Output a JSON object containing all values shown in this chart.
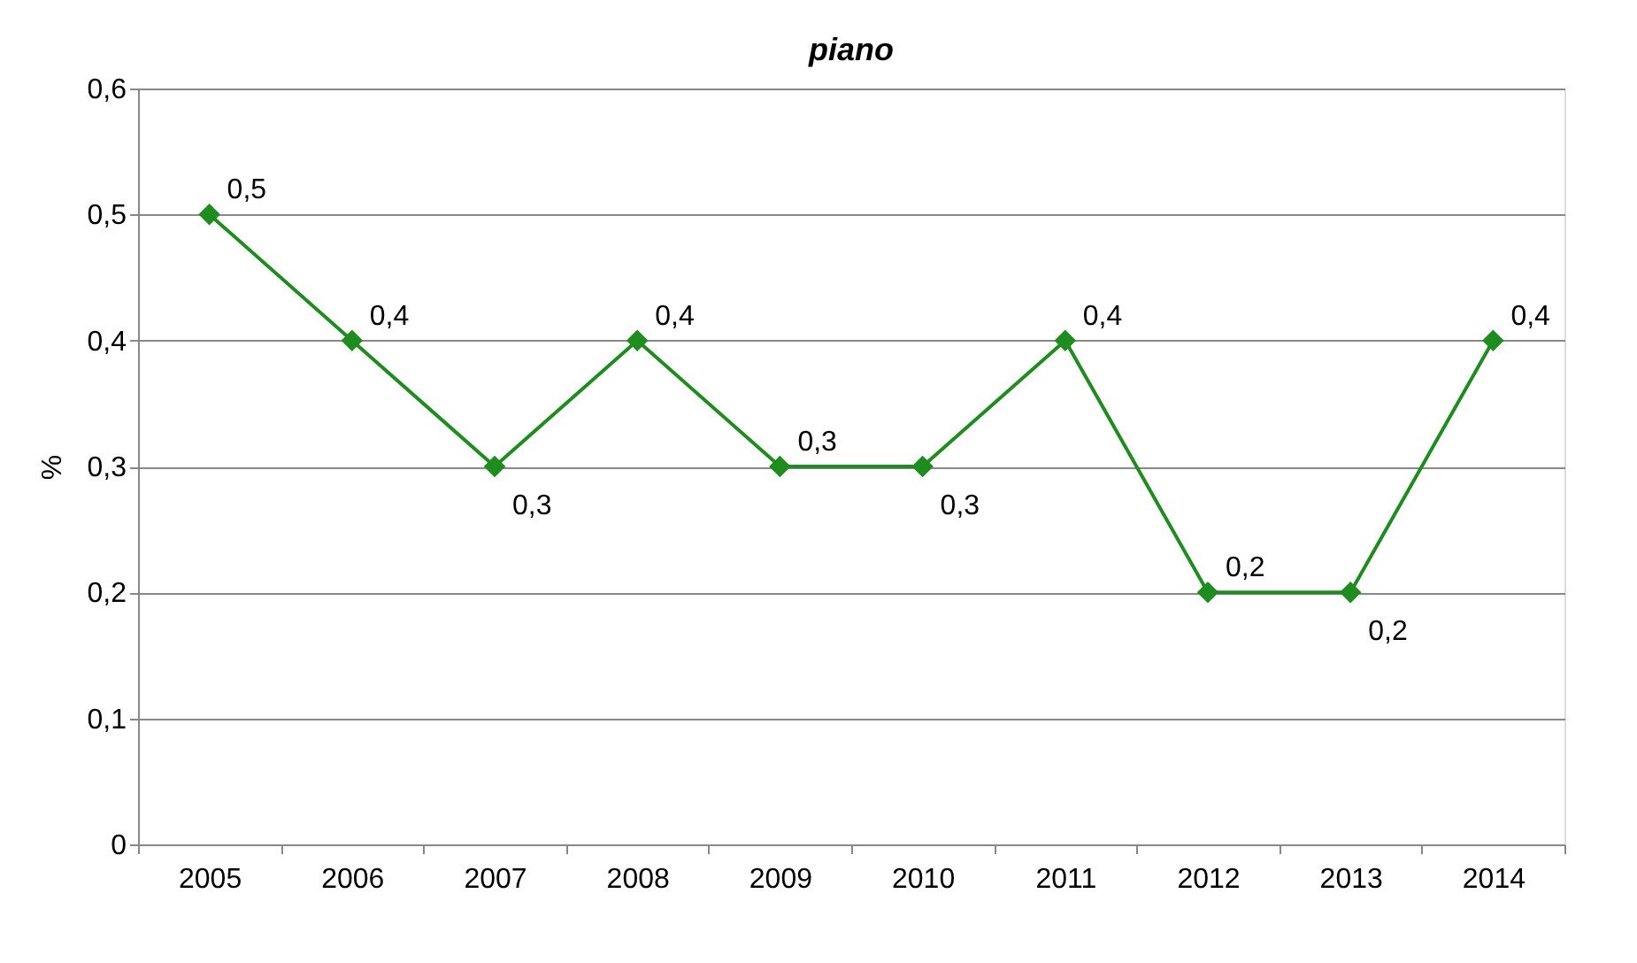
{
  "chart_data": {
    "type": "line",
    "title": "piano",
    "ylabel": "%",
    "categories": [
      "2005",
      "2006",
      "2007",
      "2008",
      "2009",
      "2010",
      "2011",
      "2012",
      "2013",
      "2014"
    ],
    "series": [
      {
        "color": "#1e8c1e",
        "values": [
          0.5,
          0.4,
          0.3,
          0.4,
          0.3,
          0.3,
          0.4,
          0.2,
          0.2,
          0.4
        ]
      }
    ],
    "value_labels": [
      "0,5",
      "0,4",
      "0,3",
      "0,4",
      "0,3",
      "0,3",
      "0,4",
      "0,2",
      "0,2",
      "0,4"
    ],
    "ylim": [
      0,
      0.6
    ],
    "yticks": [
      {
        "value": 0,
        "label": "0"
      },
      {
        "value": 0.1,
        "label": "0,1"
      },
      {
        "value": 0.2,
        "label": "0,2"
      },
      {
        "value": 0.3,
        "label": "0,3"
      },
      {
        "value": 0.4,
        "label": "0,4"
      },
      {
        "value": 0.5,
        "label": "0,5"
      },
      {
        "value": 0.6,
        "label": "0,6"
      }
    ],
    "grid": "y",
    "marker": "diamond",
    "line_style": "solid"
  }
}
